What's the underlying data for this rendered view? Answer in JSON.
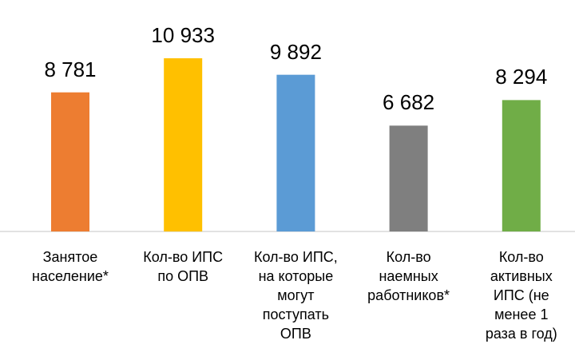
{
  "chart_data": {
    "type": "bar",
    "categories": [
      "Занятое\nнаселение*",
      "Кол-во ИПС\nпо ОПВ",
      "Кол-во ИПС,\nна которые\nмогут\nпоступать\nОПВ",
      "Кол-во\nнаемных\nработников*",
      "Кол-во\nактивных\nИПС (не\nменее 1\nраза в год)"
    ],
    "values": [
      8781,
      10933,
      9892,
      6682,
      8294
    ],
    "value_labels": [
      "8 781",
      "10 933",
      "9 892",
      "6 682",
      "8 294"
    ],
    "colors": [
      "#ed7d31",
      "#ffc000",
      "#5b9bd5",
      "#7f7f7f",
      "#70ad47"
    ]
  }
}
